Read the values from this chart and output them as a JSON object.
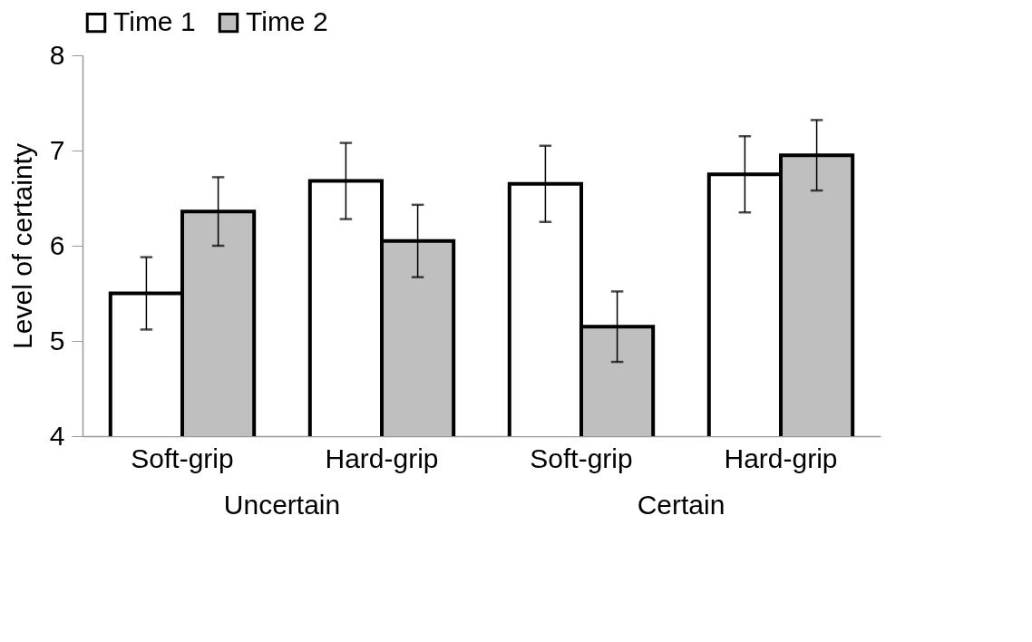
{
  "chart_data": {
    "type": "bar",
    "ylabel": "Level of certainty",
    "categories": [
      "Soft-grip",
      "Hard-grip",
      "Soft-grip",
      "Hard-grip"
    ],
    "series": [
      {
        "name": "Time 1",
        "color": "#ffffff",
        "values": [
          5.5,
          6.68,
          6.65,
          6.75
        ],
        "errors": [
          0.38,
          0.4,
          0.4,
          0.4
        ]
      },
      {
        "name": "Time 2",
        "color": "#bfbfbf",
        "values": [
          6.36,
          6.05,
          5.15,
          6.95
        ],
        "errors": [
          0.36,
          0.38,
          0.37,
          0.37
        ]
      }
    ],
    "ylim": [
      4,
      8
    ],
    "yticks": [
      4,
      5,
      6,
      7,
      8
    ],
    "legend": "top",
    "annotations": [
      "Uncertain",
      "Certain"
    ]
  }
}
